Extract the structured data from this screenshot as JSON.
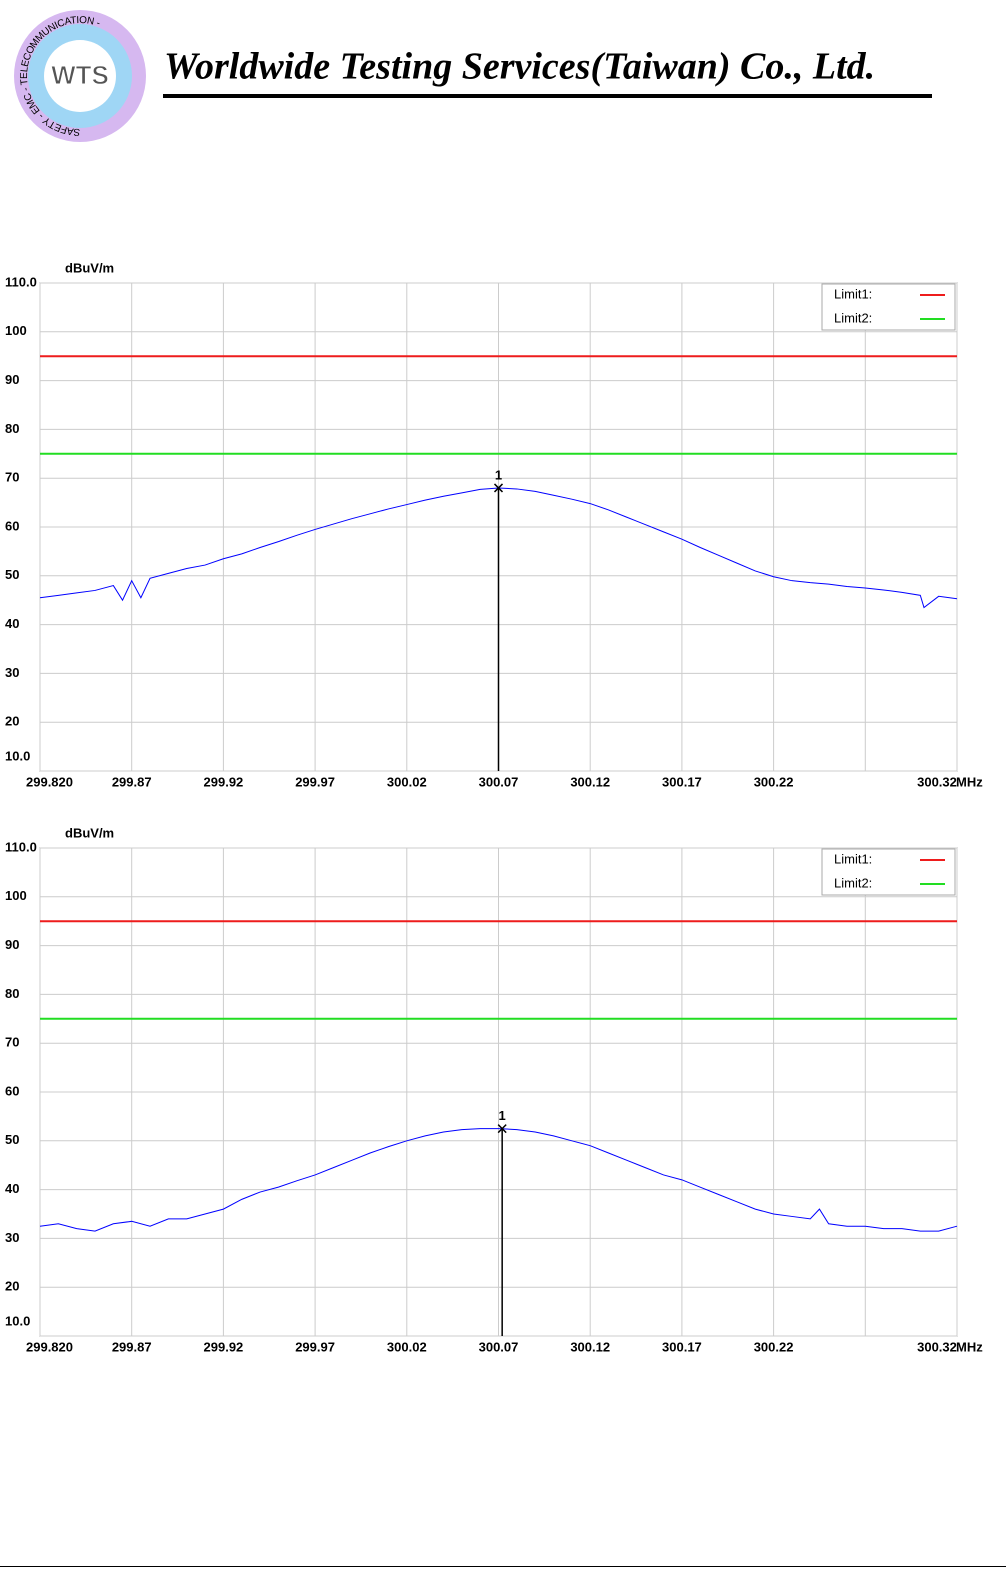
{
  "header": {
    "logo": "WTS",
    "logo_ring": "SAFETY - EMC - TELECOMMUNICATION -",
    "company": "Worldwide Testing Services(Taiwan) Co., Ltd."
  },
  "chart_data": [
    {
      "type": "line",
      "y_unit": "dBuV/m",
      "x_unit": "MHz",
      "x": [
        299.82,
        299.83,
        299.84,
        299.85,
        299.86,
        299.865,
        299.87,
        299.875,
        299.88,
        299.89,
        299.9,
        299.91,
        299.92,
        299.93,
        299.94,
        299.95,
        299.96,
        299.97,
        299.98,
        299.99,
        300.0,
        300.01,
        300.02,
        300.03,
        300.04,
        300.05,
        300.06,
        300.07,
        300.08,
        300.09,
        300.1,
        300.11,
        300.12,
        300.13,
        300.14,
        300.15,
        300.16,
        300.17,
        300.18,
        300.19,
        300.2,
        300.21,
        300.22,
        300.23,
        300.24,
        300.25,
        300.26,
        300.27,
        300.28,
        300.29,
        300.3,
        300.302,
        300.31,
        300.32
      ],
      "series": [
        {
          "color": "#0000ff",
          "values": [
            45.5,
            46,
            46.5,
            47,
            48,
            45,
            49,
            45.5,
            49.5,
            50.5,
            51.5,
            52.2,
            53.5,
            54.5,
            55.8,
            57,
            58.3,
            59.5,
            60.6,
            61.7,
            62.7,
            63.7,
            64.6,
            65.5,
            66.3,
            67,
            67.7,
            68,
            67.8,
            67.3,
            66.5,
            65.7,
            64.8,
            63.5,
            62,
            60.5,
            59,
            57.5,
            55.8,
            54.2,
            52.6,
            51,
            49.8,
            49,
            48.6,
            48.3,
            47.8,
            47.5,
            47.1,
            46.6,
            46,
            43.5,
            45.8,
            45.3
          ]
        }
      ],
      "limits": [
        {
          "name": "Limit1:",
          "color": "#ee1c1c",
          "value": 95
        },
        {
          "name": "Limit2:",
          "color": "#22dd22",
          "value": 75
        }
      ],
      "marker": {
        "label": "1",
        "x": 300.07,
        "value": 68
      },
      "xlim": [
        299.82,
        300.32
      ],
      "ylim": [
        10,
        110
      ],
      "xticks": [
        {
          "value": 299.82,
          "label": "299.820"
        },
        299.87,
        299.92,
        299.97,
        300.02,
        300.07,
        300.12,
        300.17,
        300.22,
        {
          "value": 300.27,
          "label": null
        },
        300.32
      ],
      "yticks": [
        {
          "value": 10,
          "label": "10.0"
        },
        20,
        30,
        40,
        50,
        60,
        70,
        80,
        90,
        100,
        {
          "value": 110,
          "label": "110.0"
        }
      ],
      "grid": true
    },
    {
      "type": "line",
      "y_unit": "dBuV/m",
      "x_unit": "MHz",
      "x": [
        299.82,
        299.83,
        299.84,
        299.85,
        299.86,
        299.87,
        299.88,
        299.89,
        299.9,
        299.91,
        299.92,
        299.93,
        299.94,
        299.95,
        299.96,
        299.97,
        299.98,
        299.99,
        300.0,
        300.01,
        300.02,
        300.03,
        300.04,
        300.05,
        300.06,
        300.07,
        300.08,
        300.09,
        300.1,
        300.11,
        300.12,
        300.13,
        300.14,
        300.15,
        300.16,
        300.17,
        300.18,
        300.19,
        300.2,
        300.21,
        300.22,
        300.23,
        300.24,
        300.245,
        300.25,
        300.26,
        300.27,
        300.28,
        300.29,
        300.3,
        300.31,
        300.32
      ],
      "series": [
        {
          "color": "#0000ff",
          "values": [
            32.5,
            33,
            32,
            31.5,
            33,
            33.5,
            32.5,
            34,
            34,
            35,
            36,
            38,
            39.5,
            40.5,
            41.8,
            43,
            44.5,
            46,
            47.5,
            48.8,
            50,
            51,
            51.8,
            52.3,
            52.5,
            52.5,
            52.3,
            51.8,
            51,
            50,
            49,
            47.5,
            46,
            44.5,
            43,
            42,
            40.5,
            39,
            37.5,
            36,
            35,
            34.5,
            34,
            36,
            33,
            32.5,
            32.5,
            32,
            32,
            31.5,
            31.5,
            32.5
          ]
        }
      ],
      "limits": [
        {
          "name": "Limit1:",
          "color": "#ee1c1c",
          "value": 95
        },
        {
          "name": "Limit2:",
          "color": "#22dd22",
          "value": 75
        }
      ],
      "marker": {
        "label": "1",
        "x": 300.072,
        "value": 52.5
      },
      "xlim": [
        299.82,
        300.32
      ],
      "ylim": [
        10,
        110
      ],
      "xticks": [
        {
          "value": 299.82,
          "label": "299.820"
        },
        299.87,
        299.92,
        299.97,
        300.02,
        300.07,
        300.12,
        300.17,
        300.22,
        {
          "value": 300.27,
          "label": null
        },
        300.32
      ],
      "yticks": [
        {
          "value": 10,
          "label": "10.0"
        },
        20,
        30,
        40,
        50,
        60,
        70,
        80,
        90,
        100,
        {
          "value": 110,
          "label": "110.0"
        }
      ],
      "grid": true
    }
  ]
}
